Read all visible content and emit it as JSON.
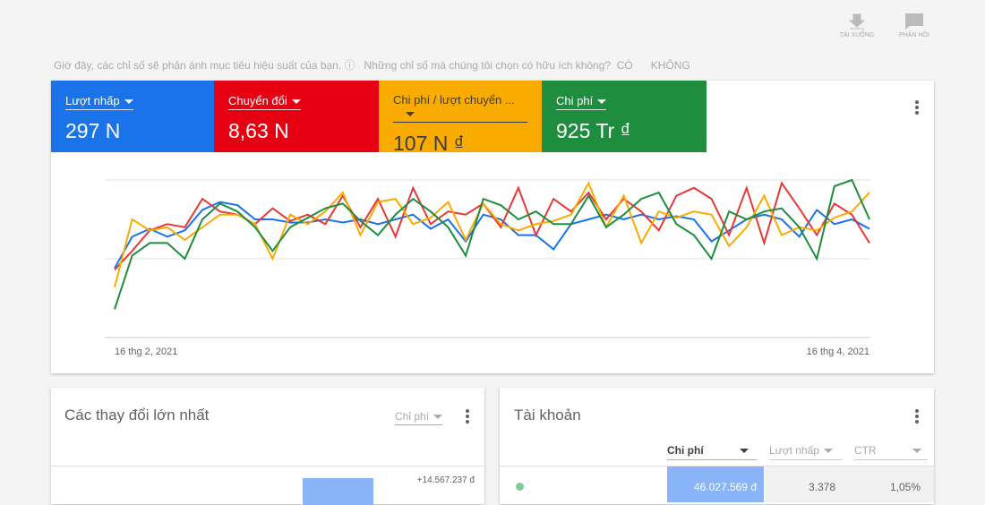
{
  "toolbar": {
    "download": "TẢI XUỐNG",
    "feedback": "PHẢN HỒI"
  },
  "notice": {
    "text": "Giờ đây, các chỉ số sẽ phản ánh mục tiêu hiệu suất của bạn.",
    "question": "Những chỉ số mà chúng tôi chọn có hữu ích không?",
    "yes": "CÓ",
    "no": "KHÔNG"
  },
  "metrics": [
    {
      "label": "Lượt nhấp",
      "value": "297 N"
    },
    {
      "label": "Chuyển đổi",
      "value": "8,63 N"
    },
    {
      "label": "Chi phí / lượt chuyển ...",
      "value": "107 N ₫"
    },
    {
      "label": "Chi phí",
      "value": "925 Tr ₫"
    }
  ],
  "chart": {
    "type": "line",
    "ylim": [
      0,
      100
    ],
    "x_start": "16 thg 2, 2021",
    "x_end": "16 thg 4, 2021",
    "series": [
      {
        "name": "Lượt nhấp",
        "color": "#1a73e8",
        "values": [
          44,
          64,
          69,
          64,
          68,
          81,
          86,
          84,
          75,
          75,
          73,
          73,
          75,
          73,
          75,
          72,
          75,
          78,
          69,
          75,
          61,
          78,
          75,
          65,
          65,
          56,
          72,
          75,
          78,
          75,
          78,
          75,
          77,
          75,
          61,
          68,
          75,
          78,
          75,
          64,
          81,
          72,
          75,
          69
        ]
      },
      {
        "name": "Chuyển đổi",
        "color": "#e53935",
        "values": [
          43,
          55,
          68,
          72,
          70,
          88,
          80,
          78,
          72,
          82,
          74,
          78,
          72,
          90,
          70,
          88,
          64,
          95,
          72,
          80,
          78,
          85,
          70,
          95,
          65,
          88,
          80,
          92,
          75,
          88,
          80,
          68,
          90,
          95,
          88,
          65,
          95,
          60,
          98,
          82,
          65,
          85,
          78,
          60
        ]
      },
      {
        "name": "Chi phí / lượt chuyển ...",
        "color": "#f9ab00",
        "values": [
          32,
          75,
          68,
          70,
          62,
          70,
          78,
          78,
          72,
          50,
          78,
          72,
          80,
          92,
          65,
          86,
          88,
          72,
          76,
          86,
          62,
          85,
          72,
          68,
          72,
          74,
          78,
          98,
          70,
          90,
          60,
          80,
          76,
          80,
          78,
          58,
          70,
          90,
          65,
          70,
          68,
          76,
          80,
          92
        ]
      },
      {
        "name": "Chi phí",
        "color": "#1e8e3e",
        "values": [
          18,
          52,
          60,
          60,
          50,
          75,
          85,
          80,
          70,
          55,
          70,
          76,
          82,
          85,
          74,
          65,
          78,
          88,
          80,
          70,
          52,
          88,
          84,
          75,
          80,
          72,
          72,
          90,
          70,
          78,
          88,
          92,
          72,
          65,
          50,
          80,
          75,
          80,
          82,
          70,
          50,
          96,
          100,
          75
        ]
      }
    ]
  },
  "changes": {
    "title": "Các thay đổi lớn nhất",
    "dropdown": "Chỉ phí",
    "row_value": "+14.567.237 đ"
  },
  "accounts": {
    "title": "Tài khoản",
    "columns": [
      "Chi phí",
      "Lượt nhấp",
      "CTR"
    ],
    "row": [
      "46.027.569 đ",
      "3.378",
      "1,05%"
    ]
  }
}
